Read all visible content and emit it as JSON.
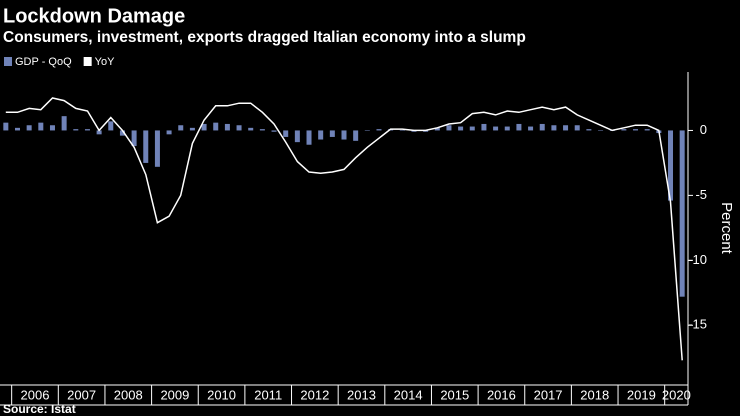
{
  "chart_data": {
    "type": "bar_line",
    "title": "Lockdown Damage",
    "subtitle": "Consumers, investment, exports dragged Italian economy into a slump",
    "y_axis_label": "Percent",
    "source": "Source: Istat",
    "categories": [
      null,
      null,
      null,
      null,
      null,
      null,
      null,
      null,
      null,
      null,
      null,
      null,
      null,
      null,
      null,
      null,
      null,
      null,
      null,
      null,
      null,
      null,
      null,
      null,
      null,
      null,
      null,
      null,
      null,
      null,
      null,
      null,
      null,
      null,
      null,
      null,
      null,
      null,
      null,
      null,
      null,
      null,
      null,
      null,
      null,
      null,
      null,
      null,
      null,
      null,
      null,
      null,
      null,
      null,
      null,
      null,
      null,
      null,
      null
    ],
    "xlim": [
      2005.75,
      2020.5
    ],
    "xticks": [
      2006,
      2007,
      2008,
      2009,
      2010,
      2011,
      2012,
      2013,
      2014,
      2015,
      2016,
      2017,
      2018,
      2019,
      2020
    ],
    "ylim": [
      -19.6,
      4.5
    ],
    "yticks": [
      -15,
      -10,
      -5,
      0
    ],
    "series": [
      {
        "name": "GDP - QoQ",
        "kind": "bar",
        "color": "#7083b8",
        "values": [
          0.6,
          0.2,
          0.4,
          0.6,
          0.4,
          1.1,
          0.1,
          0.1,
          -0.3,
          0.7,
          -0.4,
          -1.2,
          -2.5,
          -2.8,
          -0.3,
          0.4,
          0.2,
          0.5,
          0.6,
          0.5,
          0.4,
          0.2,
          0.1,
          -0.1,
          -0.5,
          -0.9,
          -1.1,
          -0.7,
          -0.5,
          -0.7,
          -0.8,
          0.0,
          0.1,
          0.1,
          0.0,
          -0.1,
          -0.1,
          0.2,
          0.4,
          0.3,
          0.3,
          0.5,
          0.3,
          0.3,
          0.5,
          0.3,
          0.5,
          0.4,
          0.4,
          0.4,
          0.1,
          0.0,
          0.0,
          0.1,
          0.1,
          0.1,
          -0.2,
          -5.4,
          -12.8
        ]
      },
      {
        "name": "YoY",
        "kind": "line",
        "color": "#ffffff",
        "values": [
          1.4,
          1.4,
          1.7,
          1.6,
          2.5,
          2.3,
          1.7,
          1.5,
          0.0,
          1.0,
          0.0,
          -1.3,
          -3.4,
          -7.1,
          -6.6,
          -5.0,
          -1.0,
          0.8,
          1.9,
          1.9,
          2.1,
          2.1,
          1.4,
          0.5,
          -0.9,
          -2.4,
          -3.2,
          -3.3,
          -3.2,
          -3.0,
          -2.1,
          -1.3,
          -0.6,
          0.1,
          0.1,
          0.0,
          0.0,
          0.2,
          0.5,
          0.6,
          1.3,
          1.4,
          1.2,
          1.5,
          1.4,
          1.6,
          1.8,
          1.6,
          1.8,
          1.2,
          0.8,
          0.4,
          0.0,
          0.2,
          0.4,
          0.4,
          0.0,
          -5.5,
          -17.7
        ]
      }
    ]
  }
}
